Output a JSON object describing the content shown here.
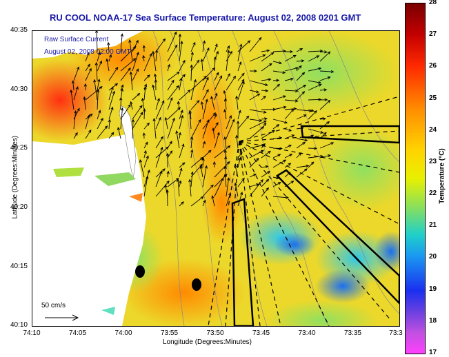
{
  "title": "RU COOL  NOAA-17  Sea Surface Temperature:  August 02, 2008 0201 GMT",
  "overlay": {
    "current_label": "Raw Surface Current",
    "current_time": "August 02, 2008 02:00 GMT",
    "scale_label": "50 cm/s"
  },
  "axes": {
    "xlabel": "Longitude (Degrees:Minutes)",
    "ylabel": "Latitude (Degrees:Minutes)",
    "xticks": [
      "74:10",
      "74:05",
      "74:00",
      "73:55",
      "73:50",
      "73:45",
      "73:40",
      "73:35",
      "73:3"
    ],
    "yticks": [
      "40:35",
      "40:30",
      "40:25",
      "40:20",
      "40:15",
      "40:10"
    ]
  },
  "colorbar": {
    "label": "Temperature (°C)",
    "ticks": [
      "28",
      "27",
      "26",
      "25",
      "24",
      "23",
      "22",
      "21",
      "20",
      "19",
      "18",
      "17"
    ],
    "min": 17,
    "max": 28
  },
  "colors": {
    "title": "#1a1aa8",
    "land": "#ffffff",
    "ocean_base": "#f0e020"
  }
}
